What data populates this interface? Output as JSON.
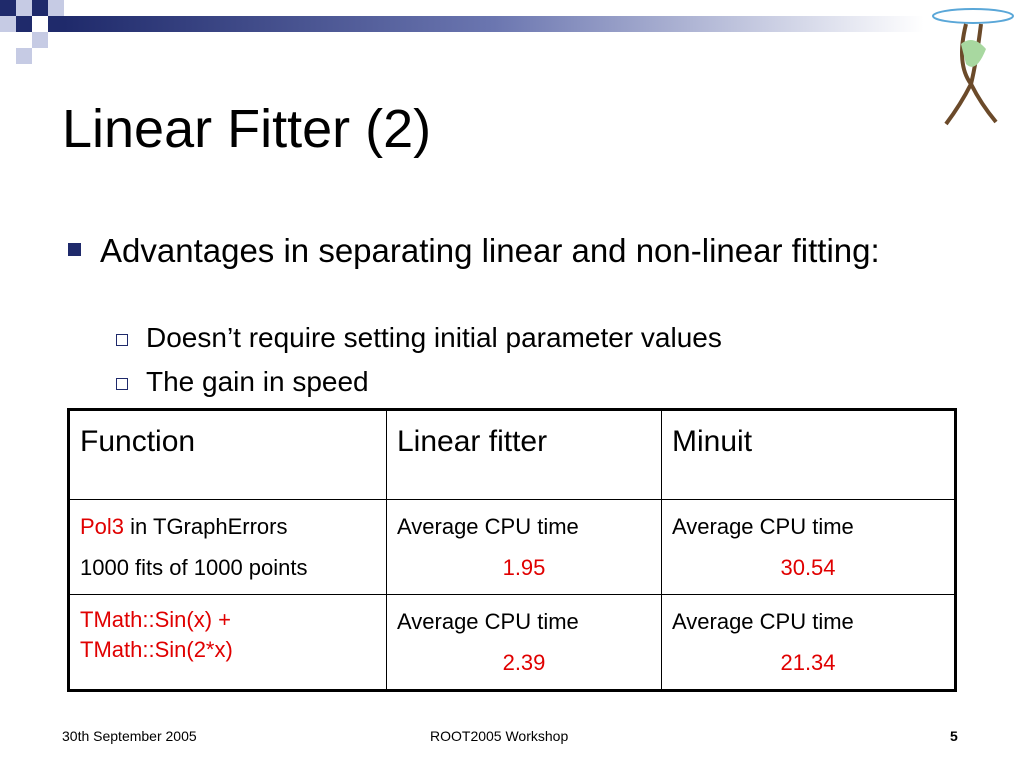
{
  "title": "Linear Fitter (2)",
  "bullets": [
    {
      "text": "Advantages in separating linear and non-linear fitting:",
      "sub": [
        "Doesn’t require setting initial parameter values",
        "The gain in speed"
      ]
    }
  ],
  "table": {
    "header": [
      "Function",
      "Linear fitter",
      "Minuit"
    ],
    "rows": [
      {
        "function": {
          "highlight": "Pol3",
          "rest": "in TGraphErrors",
          "note": "1000 fits of 1000 points"
        },
        "linear": {
          "label": "Average CPU time",
          "value": 1.95
        },
        "minuit": {
          "label": "Average CPU time",
          "value": 30.54
        }
      },
      {
        "function": {
          "highlight": "TMath::Sin(x) + TMath::Sin(2*x)"
        },
        "linear": {
          "label": "Average CPU time",
          "value": 2.39
        },
        "minuit": {
          "label": "Average CPU time",
          "value": 21.34
        }
      }
    ]
  },
  "footer": {
    "date": "30th September 2005",
    "event": "ROOT2005 Workshop",
    "page": 5
  }
}
